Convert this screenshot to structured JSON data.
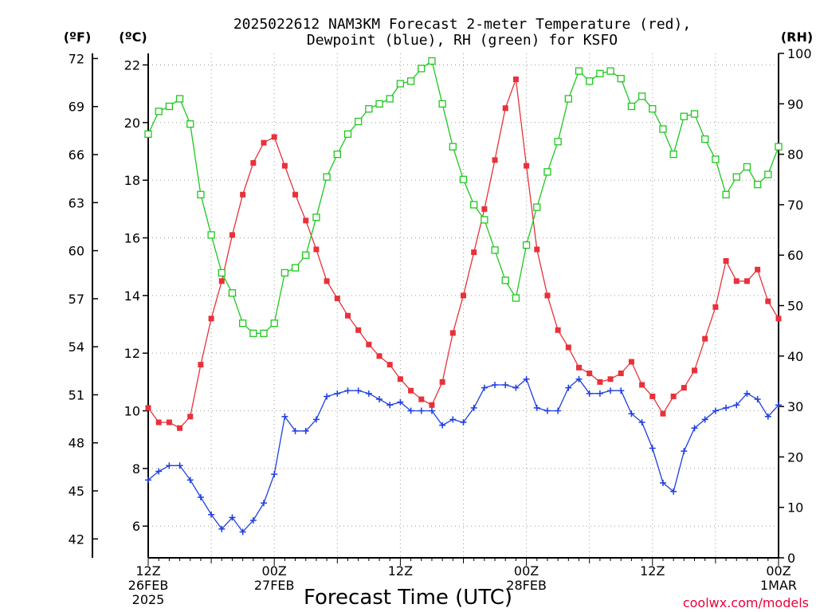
{
  "chart_data": {
    "type": "line",
    "title_line1": "2025022612 NAM3KM Forecast 2-meter Temperature (red),",
    "title_line2": "Dewpoint (blue), RH (green) for KSFO",
    "xlabel": "Forecast Time (UTC)",
    "credit": "coolwx.com/models",
    "units": {
      "fahrenheit": "(ºF)",
      "celsius": "(ºC)",
      "rh": "(RH)"
    },
    "x_axis": {
      "range_hours": [
        0,
        60
      ]
    },
    "celsius_axis": {
      "range": [
        4.9,
        22.4
      ],
      "ticks": [
        "6",
        "8",
        "10",
        "12",
        "14",
        "16",
        "18",
        "20",
        "22"
      ]
    },
    "fahrenheit_axis": {
      "ticks": [
        "42",
        "45",
        "48",
        "51",
        "54",
        "57",
        "60",
        "63",
        "66",
        "69",
        "72"
      ]
    },
    "rh_axis": {
      "range": [
        0,
        100
      ],
      "ticks": [
        "0",
        "10",
        "20",
        "30",
        "40",
        "50",
        "60",
        "70",
        "80",
        "90",
        "100"
      ]
    },
    "x_ticks": [
      {
        "hour": 0,
        "lines": [
          "12Z",
          "26FEB",
          "2025"
        ]
      },
      {
        "hour": 12,
        "lines": [
          "00Z",
          "27FEB"
        ]
      },
      {
        "hour": 24,
        "lines": [
          "12Z"
        ]
      },
      {
        "hour": 36,
        "lines": [
          "00Z",
          "28FEB"
        ]
      },
      {
        "hour": 48,
        "lines": [
          "12Z"
        ]
      },
      {
        "hour": 60,
        "lines": [
          "00Z",
          "1MAR"
        ]
      }
    ],
    "series": [
      {
        "key": "temperature",
        "color": "#e8313a",
        "marker": "filled-square",
        "axis": "celsius",
        "values": [
          10.1,
          9.6,
          9.6,
          9.4,
          9.8,
          11.6,
          13.2,
          14.5,
          16.1,
          17.5,
          18.6,
          19.3,
          19.5,
          18.5,
          17.5,
          16.6,
          15.6,
          14.5,
          13.9,
          13.3,
          12.8,
          12.3,
          11.9,
          11.6,
          11.1,
          10.7,
          10.4,
          10.2,
          11.0,
          12.7,
          14.0,
          15.5,
          17.0,
          18.7,
          20.5,
          21.5,
          18.5,
          15.6,
          14.0,
          12.8,
          12.2,
          11.5,
          11.3,
          11.0,
          11.1,
          11.3,
          11.7,
          10.9,
          10.5,
          9.9,
          10.5,
          10.8,
          11.4,
          12.5,
          13.6,
          15.2,
          14.5,
          14.5,
          14.9,
          13.8,
          13.2
        ]
      },
      {
        "key": "dewpoint",
        "color": "#1f3fe0",
        "marker": "plus",
        "axis": "celsius",
        "values": [
          7.6,
          7.9,
          8.1,
          8.1,
          7.6,
          7.0,
          6.4,
          5.9,
          6.3,
          5.8,
          6.2,
          6.8,
          7.8,
          9.8,
          9.3,
          9.3,
          9.7,
          10.5,
          10.6,
          10.7,
          10.7,
          10.6,
          10.4,
          10.2,
          10.3,
          10.0,
          10.0,
          10.0,
          9.5,
          9.7,
          9.6,
          10.1,
          10.8,
          10.9,
          10.9,
          10.8,
          11.1,
          10.1,
          10.0,
          10.0,
          10.8,
          11.1,
          10.6,
          10.6,
          10.7,
          10.7,
          9.9,
          9.6,
          8.7,
          7.5,
          7.2,
          8.6,
          9.4,
          9.7,
          10.0,
          10.1,
          10.2,
          10.6,
          10.4,
          9.8,
          10.2
        ]
      },
      {
        "key": "rh",
        "color": "#1ec81e",
        "marker": "open-square",
        "axis": "rh",
        "values": [
          84,
          88.5,
          89.5,
          91,
          86,
          72,
          64,
          56.5,
          52.5,
          46.5,
          44.5,
          44.5,
          46.5,
          56.5,
          57.5,
          60,
          67.5,
          75.5,
          80,
          84,
          86.5,
          89,
          90,
          91,
          94,
          94.5,
          97,
          98.5,
          90,
          81.5,
          75,
          70,
          67,
          61,
          55,
          51.5,
          62,
          69.5,
          76.5,
          82.5,
          91,
          96.5,
          94.5,
          96,
          96.5,
          95,
          89.5,
          91.5,
          89,
          85,
          80,
          87.5,
          88,
          83,
          79,
          72,
          75.5,
          77.5,
          74,
          76,
          81.5
        ]
      }
    ]
  }
}
